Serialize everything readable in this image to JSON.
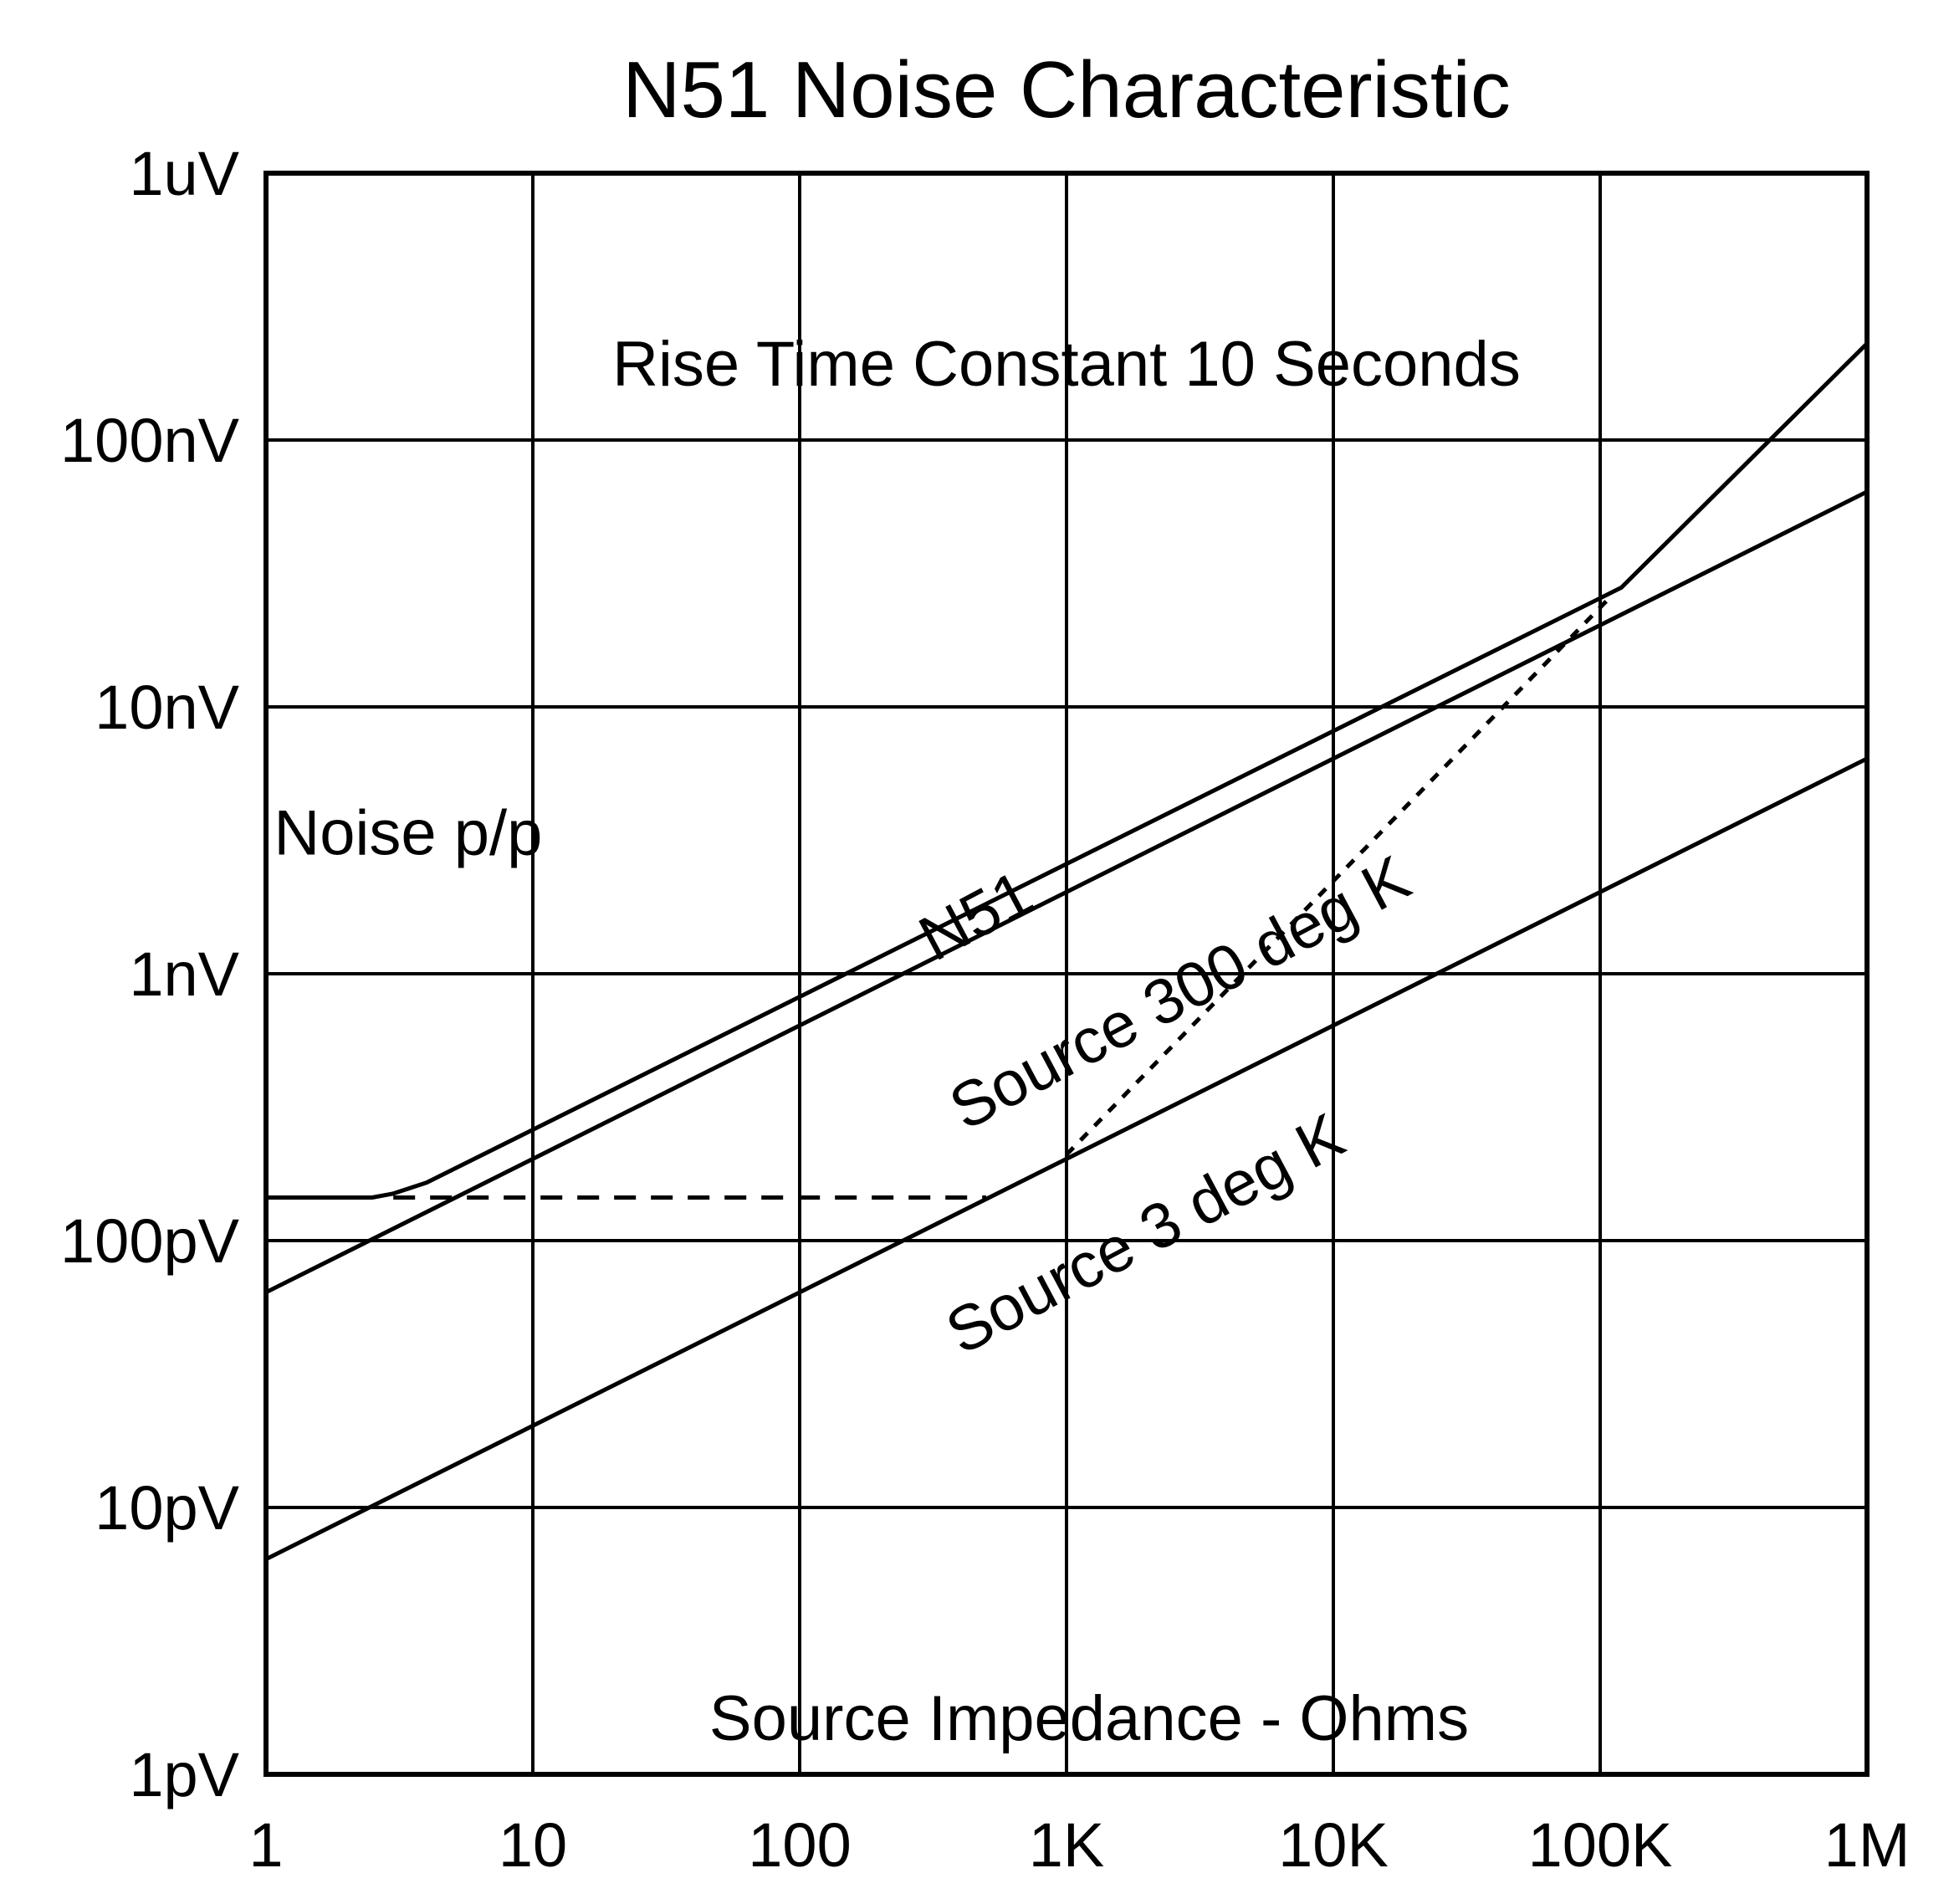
{
  "chart_data": {
    "type": "line",
    "title": "N51 Noise Characteristic",
    "xlabel": "Source Impedance - Ohms",
    "ylabel": "Noise p/p",
    "x_scale": "log",
    "y_scale": "log",
    "xlim": [
      1,
      1000000
    ],
    "ylim": [
      1e-12,
      1e-06
    ],
    "grid": true,
    "x_ticks": [
      {
        "value": 1,
        "label": "1"
      },
      {
        "value": 10,
        "label": "10"
      },
      {
        "value": 100,
        "label": "100"
      },
      {
        "value": 1000,
        "label": "1K"
      },
      {
        "value": 10000,
        "label": "10K"
      },
      {
        "value": 100000,
        "label": "100K"
      },
      {
        "value": 1000000,
        "label": "1M"
      }
    ],
    "y_ticks": [
      {
        "value": 1e-12,
        "label": "1pV"
      },
      {
        "value": 1e-11,
        "label": "10pV"
      },
      {
        "value": 1e-10,
        "label": "100pV"
      },
      {
        "value": 1e-09,
        "label": "1nV"
      },
      {
        "value": 1e-08,
        "label": "10nV"
      },
      {
        "value": 1e-07,
        "label": "100nV"
      },
      {
        "value": 1e-06,
        "label": "1uV"
      }
    ],
    "series": [
      {
        "name": "N51",
        "style": "solid",
        "x": [
          1,
          2.5,
          3,
          4,
          120000,
          1000000
        ],
        "y": [
          1.45e-10,
          1.45e-10,
          1.5e-10,
          1.65e-10,
          2.8e-08,
          2.3e-07
        ]
      },
      {
        "name": "Source 300 deg K",
        "style": "solid",
        "x": [
          1,
          1000000
        ],
        "y": [
          6.4e-11,
          6.4e-08
        ]
      },
      {
        "name": "Source 3 deg K",
        "style": "solid",
        "x": [
          1,
          1000000
        ],
        "y": [
          6.4e-12,
          6.4e-09
        ]
      },
      {
        "name": "",
        "style": "dashed",
        "x": [
          3,
          500
        ],
        "y": [
          1.45e-10,
          1.45e-10
        ]
      },
      {
        "name": "",
        "style": "dotted",
        "x": [
          1000,
          110000
        ],
        "y": [
          2.1e-10,
          2.6e-08
        ]
      }
    ],
    "annotations": [
      {
        "text": "Rise Time Constant 10 Seconds",
        "x": 1000,
        "y": 1.6e-07,
        "angle": 0,
        "anchor": "middle"
      },
      {
        "text": "Noise p/p",
        "x": 1.07,
        "y": 2.8e-09,
        "angle": 0,
        "anchor": "start"
      },
      {
        "text": "N51",
        "x": 500,
        "y": 1.4e-09,
        "angle": -28,
        "anchor": "middle"
      },
      {
        "text": "Source 300 deg K",
        "x": 2900,
        "y": 7.2e-10,
        "angle": -28,
        "anchor": "middle"
      },
      {
        "text": "Source 3 deg K",
        "x": 2150,
        "y": 9e-11,
        "angle": -28,
        "anchor": "middle"
      }
    ]
  }
}
